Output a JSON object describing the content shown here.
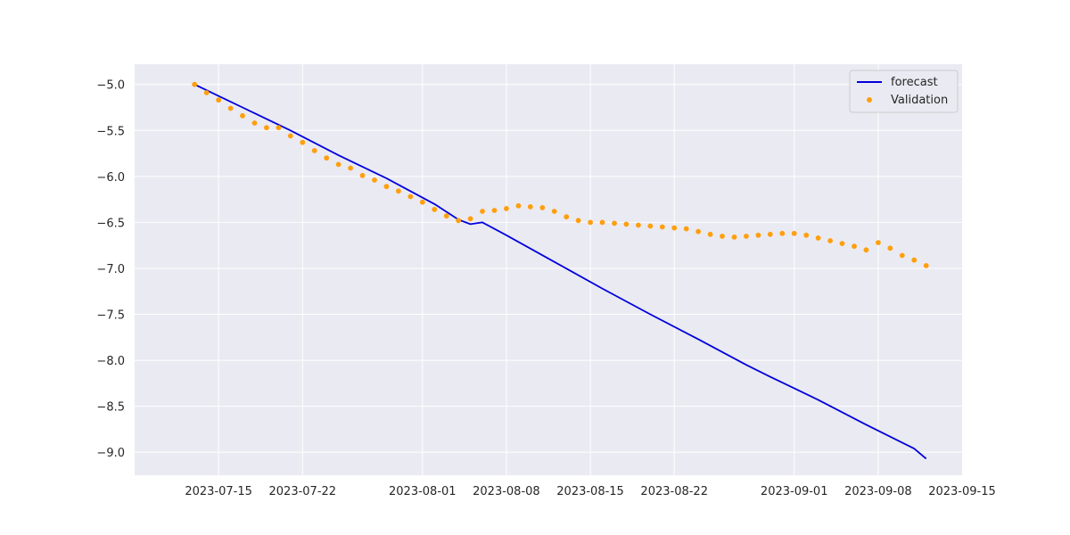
{
  "chart_data": {
    "type": "line",
    "title": "",
    "xlabel": "",
    "ylabel": "",
    "xlim": [
      "2023-07-08",
      "2023-09-15"
    ],
    "ylim": [
      -9.25,
      -4.78
    ],
    "x_ticks": [
      "2023-07-15",
      "2023-07-22",
      "2023-08-01",
      "2023-08-08",
      "2023-08-15",
      "2023-08-22",
      "2023-09-01",
      "2023-09-08",
      "2023-09-15"
    ],
    "y_ticks": [
      -5.0,
      -5.5,
      -6.0,
      -6.5,
      -7.0,
      -7.5,
      -8.0,
      -8.5,
      -9.0
    ],
    "y_tick_labels": [
      "−5.0",
      "−5.5",
      "−6.0",
      "−6.5",
      "−7.0",
      "−7.5",
      "−8.0",
      "−8.5",
      "−9.0"
    ],
    "grid": true,
    "legend_position": "top-right",
    "background": "#eaeaf2",
    "series": [
      {
        "name": "forecast",
        "kind": "line",
        "color": "#0000dd",
        "points": [
          [
            "2023-07-13",
            -5.0
          ],
          [
            "2023-07-17",
            -5.25
          ],
          [
            "2023-07-21",
            -5.5
          ],
          [
            "2023-07-25",
            -5.77
          ],
          [
            "2023-07-29",
            -6.02
          ],
          [
            "2023-08-02",
            -6.3
          ],
          [
            "2023-08-04",
            -6.47
          ],
          [
            "2023-08-05",
            -6.52
          ],
          [
            "2023-08-06",
            -6.5
          ],
          [
            "2023-08-08",
            -6.64
          ],
          [
            "2023-08-12",
            -6.93
          ],
          [
            "2023-08-16",
            -7.22
          ],
          [
            "2023-08-20",
            -7.5
          ],
          [
            "2023-08-24",
            -7.77
          ],
          [
            "2023-08-28",
            -8.05
          ],
          [
            "2023-08-30",
            -8.18
          ],
          [
            "2023-09-03",
            -8.43
          ],
          [
            "2023-09-07",
            -8.7
          ],
          [
            "2023-09-11",
            -8.96
          ],
          [
            "2023-09-12",
            -9.07
          ]
        ]
      },
      {
        "name": "Validation",
        "kind": "scatter",
        "color": "#ff9f0e",
        "points": [
          [
            "2023-07-13",
            -5.0
          ],
          [
            "2023-07-14",
            -5.09
          ],
          [
            "2023-07-15",
            -5.17
          ],
          [
            "2023-07-16",
            -5.26
          ],
          [
            "2023-07-17",
            -5.34
          ],
          [
            "2023-07-18",
            -5.42
          ],
          [
            "2023-07-19",
            -5.47
          ],
          [
            "2023-07-20",
            -5.47
          ],
          [
            "2023-07-21",
            -5.56
          ],
          [
            "2023-07-22",
            -5.63
          ],
          [
            "2023-07-23",
            -5.72
          ],
          [
            "2023-07-24",
            -5.8
          ],
          [
            "2023-07-25",
            -5.87
          ],
          [
            "2023-07-26",
            -5.91
          ],
          [
            "2023-07-27",
            -5.99
          ],
          [
            "2023-07-28",
            -6.04
          ],
          [
            "2023-07-29",
            -6.11
          ],
          [
            "2023-07-30",
            -6.16
          ],
          [
            "2023-07-31",
            -6.22
          ],
          [
            "2023-08-01",
            -6.28
          ],
          [
            "2023-08-02",
            -6.36
          ],
          [
            "2023-08-03",
            -6.43
          ],
          [
            "2023-08-04",
            -6.48
          ],
          [
            "2023-08-05",
            -6.46
          ],
          [
            "2023-08-06",
            -6.38
          ],
          [
            "2023-08-07",
            -6.37
          ],
          [
            "2023-08-08",
            -6.35
          ],
          [
            "2023-08-09",
            -6.32
          ],
          [
            "2023-08-10",
            -6.33
          ],
          [
            "2023-08-11",
            -6.34
          ],
          [
            "2023-08-12",
            -6.38
          ],
          [
            "2023-08-13",
            -6.44
          ],
          [
            "2023-08-14",
            -6.48
          ],
          [
            "2023-08-15",
            -6.5
          ],
          [
            "2023-08-16",
            -6.5
          ],
          [
            "2023-08-17",
            -6.51
          ],
          [
            "2023-08-18",
            -6.52
          ],
          [
            "2023-08-19",
            -6.53
          ],
          [
            "2023-08-20",
            -6.54
          ],
          [
            "2023-08-21",
            -6.55
          ],
          [
            "2023-08-22",
            -6.56
          ],
          [
            "2023-08-23",
            -6.57
          ],
          [
            "2023-08-24",
            -6.6
          ],
          [
            "2023-08-25",
            -6.63
          ],
          [
            "2023-08-26",
            -6.65
          ],
          [
            "2023-08-27",
            -6.66
          ],
          [
            "2023-08-28",
            -6.65
          ],
          [
            "2023-08-29",
            -6.64
          ],
          [
            "2023-08-30",
            -6.63
          ],
          [
            "2023-08-31",
            -6.62
          ],
          [
            "2023-09-01",
            -6.62
          ],
          [
            "2023-09-02",
            -6.64
          ],
          [
            "2023-09-03",
            -6.67
          ],
          [
            "2023-09-04",
            -6.7
          ],
          [
            "2023-09-05",
            -6.73
          ],
          [
            "2023-09-06",
            -6.76
          ],
          [
            "2023-09-07",
            -6.8
          ],
          [
            "2023-09-08",
            -6.72
          ],
          [
            "2023-09-09",
            -6.78
          ],
          [
            "2023-09-10",
            -6.86
          ],
          [
            "2023-09-11",
            -6.91
          ],
          [
            "2023-09-12",
            -6.97
          ]
        ]
      }
    ]
  }
}
